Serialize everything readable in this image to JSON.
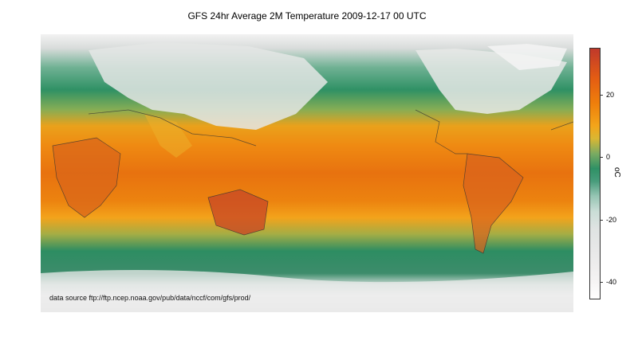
{
  "title": "GFS 24hr Average 2M Temperature 2009-12-17 00 UTC",
  "source_note": "data source ftp://ftp.ncep.noaa.gov/pub/data/nccf/com/gfs/prod/",
  "colorbar": {
    "unit": "oC",
    "min": -45,
    "max": 35,
    "ticks": [
      {
        "value": 20,
        "label": "20"
      },
      {
        "value": 0,
        "label": "0"
      },
      {
        "value": -20,
        "label": "-20"
      },
      {
        "value": -40,
        "label": "-40"
      }
    ],
    "colors": [
      "#c0392b",
      "#e45d13",
      "#f3a51a",
      "#2f9165",
      "#96c5b3",
      "#e9e9e9",
      "#ffffff"
    ]
  }
}
